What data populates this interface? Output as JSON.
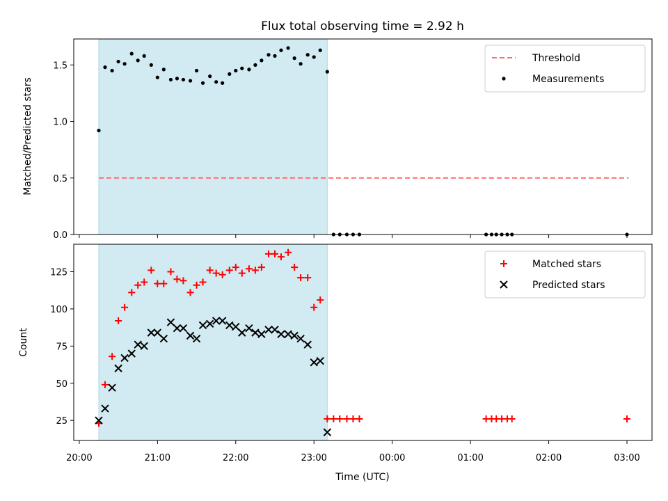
{
  "chart_data": {
    "title": "Flux total observing time = 2.92 h",
    "xlabel": "Time (UTC)",
    "x_ticks": [
      "20:00",
      "21:00",
      "22:00",
      "23:00",
      "00:00",
      "01:00",
      "02:00",
      "03:00"
    ],
    "x_tick_hours": [
      20,
      21,
      22,
      23,
      24,
      25,
      26,
      27
    ],
    "x_range_hours": [
      19.93,
      27.32
    ],
    "shaded_span_hours": [
      20.25,
      23.17
    ],
    "shade_color": "#add8e6",
    "panels": [
      {
        "type": "scatter",
        "ylabel": "Matched/Predicted stars",
        "ylim": [
          0,
          1.73
        ],
        "y_ticks": [
          0.0,
          0.5,
          1.0,
          1.5
        ],
        "y_tick_labels": [
          "0.0",
          "0.5",
          "1.0",
          "1.5"
        ],
        "legend_placement": "top-right",
        "threshold": {
          "name": "Threshold",
          "value": 0.5,
          "x_start": 20.25,
          "x_end": 27.02,
          "color": "#ff6b6b"
        },
        "series": [
          {
            "name": "Measurements",
            "marker": "dot",
            "color": "#000000",
            "points": [
              [
                20.25,
                0.92
              ],
              [
                20.33,
                1.48
              ],
              [
                20.42,
                1.45
              ],
              [
                20.5,
                1.53
              ],
              [
                20.58,
                1.51
              ],
              [
                20.67,
                1.6
              ],
              [
                20.75,
                1.54
              ],
              [
                20.83,
                1.58
              ],
              [
                20.92,
                1.5
              ],
              [
                21.0,
                1.39
              ],
              [
                21.08,
                1.46
              ],
              [
                21.17,
                1.37
              ],
              [
                21.25,
                1.38
              ],
              [
                21.33,
                1.37
              ],
              [
                21.42,
                1.36
              ],
              [
                21.5,
                1.45
              ],
              [
                21.58,
                1.34
              ],
              [
                21.67,
                1.4
              ],
              [
                21.75,
                1.35
              ],
              [
                21.83,
                1.34
              ],
              [
                21.92,
                1.42
              ],
              [
                22.0,
                1.45
              ],
              [
                22.08,
                1.47
              ],
              [
                22.17,
                1.46
              ],
              [
                22.25,
                1.5
              ],
              [
                22.33,
                1.54
              ],
              [
                22.42,
                1.59
              ],
              [
                22.5,
                1.58
              ],
              [
                22.58,
                1.63
              ],
              [
                22.67,
                1.65
              ],
              [
                22.75,
                1.56
              ],
              [
                22.83,
                1.51
              ],
              [
                22.92,
                1.59
              ],
              [
                23.0,
                1.57
              ],
              [
                23.08,
                1.63
              ],
              [
                23.17,
                1.44
              ],
              [
                23.25,
                0.0
              ],
              [
                23.33,
                0.0
              ],
              [
                23.42,
                0.0
              ],
              [
                23.5,
                0.0
              ],
              [
                23.58,
                0.0
              ],
              [
                25.2,
                0.0
              ],
              [
                25.27,
                0.0
              ],
              [
                25.33,
                0.0
              ],
              [
                25.4,
                0.0
              ],
              [
                25.47,
                0.0
              ],
              [
                25.53,
                0.0
              ],
              [
                27.0,
                0.0
              ]
            ]
          }
        ]
      },
      {
        "type": "scatter",
        "ylabel": "Count",
        "ylim": [
          11.5,
          143.5
        ],
        "y_ticks": [
          25,
          50,
          75,
          100,
          125
        ],
        "y_tick_labels": [
          "25",
          "50",
          "75",
          "100",
          "125"
        ],
        "legend_placement": "top-right",
        "series": [
          {
            "name": "Matched stars",
            "marker": "plus",
            "color": "#ff0000",
            "points": [
              [
                20.25,
                23
              ],
              [
                20.33,
                49
              ],
              [
                20.42,
                68
              ],
              [
                20.5,
                92
              ],
              [
                20.58,
                101
              ],
              [
                20.67,
                111
              ],
              [
                20.75,
                116
              ],
              [
                20.83,
                118
              ],
              [
                20.92,
                126
              ],
              [
                21.0,
                117
              ],
              [
                21.08,
                117
              ],
              [
                21.17,
                125
              ],
              [
                21.25,
                120
              ],
              [
                21.33,
                119
              ],
              [
                21.42,
                111
              ],
              [
                21.5,
                116
              ],
              [
                21.58,
                118
              ],
              [
                21.67,
                126
              ],
              [
                21.75,
                124
              ],
              [
                21.83,
                123
              ],
              [
                21.92,
                126
              ],
              [
                22.0,
                128
              ],
              [
                22.08,
                124
              ],
              [
                22.17,
                127
              ],
              [
                22.25,
                126
              ],
              [
                22.33,
                128
              ],
              [
                22.42,
                137
              ],
              [
                22.5,
                137
              ],
              [
                22.58,
                135
              ],
              [
                22.67,
                138
              ],
              [
                22.75,
                128
              ],
              [
                22.83,
                121
              ],
              [
                22.92,
                121
              ],
              [
                23.0,
                101
              ],
              [
                23.08,
                106
              ],
              [
                23.17,
                26
              ],
              [
                23.25,
                26
              ],
              [
                23.33,
                26
              ],
              [
                23.42,
                26
              ],
              [
                23.5,
                26
              ],
              [
                23.58,
                26
              ],
              [
                25.2,
                26
              ],
              [
                25.27,
                26
              ],
              [
                25.33,
                26
              ],
              [
                25.4,
                26
              ],
              [
                25.47,
                26
              ],
              [
                25.53,
                26
              ],
              [
                27.0,
                26
              ]
            ]
          },
          {
            "name": "Predicted stars",
            "marker": "x",
            "color": "#000000",
            "points": [
              [
                20.25,
                25
              ],
              [
                20.33,
                33
              ],
              [
                20.42,
                47
              ],
              [
                20.5,
                60
              ],
              [
                20.58,
                67
              ],
              [
                20.67,
                70
              ],
              [
                20.75,
                76
              ],
              [
                20.83,
                75
              ],
              [
                20.92,
                84
              ],
              [
                21.0,
                84
              ],
              [
                21.08,
                80
              ],
              [
                21.17,
                91
              ],
              [
                21.25,
                87
              ],
              [
                21.33,
                87
              ],
              [
                21.42,
                82
              ],
              [
                21.5,
                80
              ],
              [
                21.58,
                89
              ],
              [
                21.67,
                90
              ],
              [
                21.75,
                92
              ],
              [
                21.83,
                92
              ],
              [
                21.92,
                89
              ],
              [
                22.0,
                88
              ],
              [
                22.08,
                84
              ],
              [
                22.17,
                87
              ],
              [
                22.25,
                84
              ],
              [
                22.33,
                83
              ],
              [
                22.42,
                86
              ],
              [
                22.5,
                86
              ],
              [
                22.58,
                83
              ],
              [
                22.67,
                83
              ],
              [
                22.75,
                82
              ],
              [
                22.83,
                80
              ],
              [
                22.92,
                76
              ],
              [
                23.0,
                64
              ],
              [
                23.08,
                65
              ],
              [
                23.17,
                17
              ]
            ]
          }
        ]
      }
    ]
  }
}
